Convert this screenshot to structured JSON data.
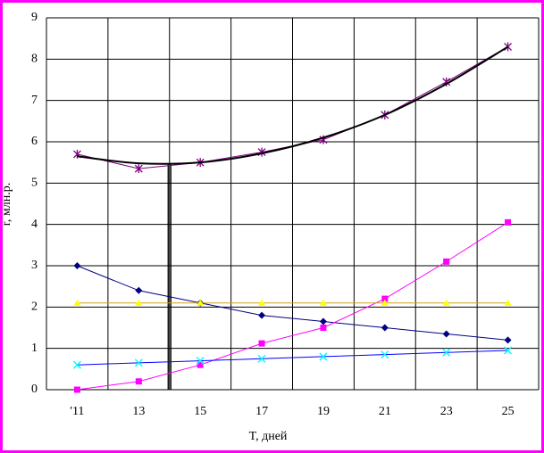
{
  "chart_data": {
    "type": "line",
    "x_label": "T, дней",
    "y_label": "r, млн.р.",
    "categories": [
      "'11",
      "13",
      "15",
      "17",
      "19",
      "21",
      "23",
      "25"
    ],
    "ylim": [
      0,
      9
    ],
    "yticks": [
      0,
      1,
      2,
      3,
      4,
      5,
      6,
      7,
      8,
      9
    ],
    "grid": true,
    "series": [
      {
        "color": "#000080",
        "marker": "diamond",
        "marker_color": "#000080",
        "values": [
          3.0,
          2.4,
          2.1,
          1.8,
          1.65,
          1.5,
          1.35,
          1.2
        ]
      },
      {
        "color": "#ff00ff",
        "marker": "square",
        "marker_color": "#ff00ff",
        "values": [
          0,
          0.2,
          0.6,
          1.12,
          1.5,
          2.2,
          3.1,
          4.05
        ]
      },
      {
        "color": "#d4a017",
        "marker": "triangle",
        "marker_color": "#ffff00",
        "values": [
          2.1,
          2.1,
          2.1,
          2.1,
          2.1,
          2.1,
          2.1,
          2.1
        ]
      },
      {
        "color": "#0000ff",
        "marker": "cross",
        "marker_color": "#00ffff",
        "values": [
          0.6,
          0.65,
          0.7,
          0.75,
          0.8,
          0.85,
          0.9,
          0.95
        ]
      },
      {
        "color": "#800080",
        "marker": "star",
        "marker_color": "#800080",
        "values": [
          5.7,
          5.35,
          5.5,
          5.75,
          6.05,
          6.65,
          7.45,
          8.3
        ]
      },
      {
        "color": "#000000",
        "marker": "none",
        "smooth": true,
        "values": [
          5.65,
          5.48,
          5.5,
          5.72,
          6.1,
          6.65,
          7.4,
          8.3
        ]
      }
    ],
    "vline": {
      "x": 14,
      "y": 5.47
    }
  }
}
